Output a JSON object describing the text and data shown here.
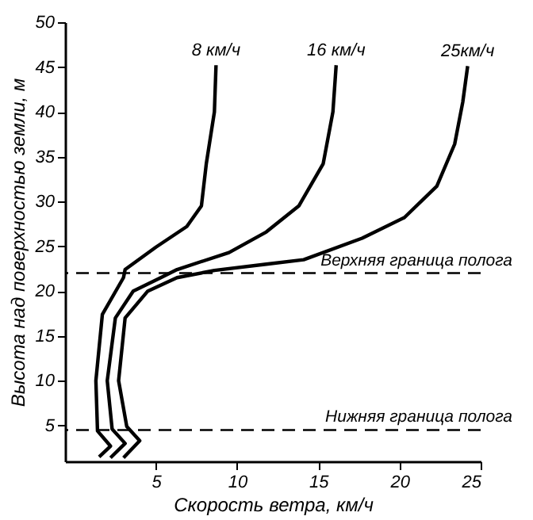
{
  "chart_data": {
    "type": "line",
    "xlabel": "Скорость ветра, км/ч",
    "ylabel": "Высота над поверхностью земли, м",
    "xlim": [
      -0.6,
      25
    ],
    "xticks": [
      5,
      10,
      15,
      20,
      25
    ],
    "ylim": [
      1,
      50
    ],
    "yticks": [
      5,
      10,
      15,
      20,
      25,
      30,
      35,
      40,
      45,
      50
    ],
    "grid": false,
    "marker": "none",
    "line_style": "solid",
    "series": [
      {
        "name": "8 км/ч",
        "color": "#000000",
        "x": [
          1.5,
          2.2,
          1.4,
          1.3,
          1.7,
          3.0,
          3.1,
          5.0,
          6.9,
          7.8,
          8.1,
          8.6,
          8.7
        ],
        "values": [
          1.5,
          2.7,
          4.4,
          10,
          17.4,
          21.5,
          22.4,
          24.9,
          27.2,
          29.5,
          34.2,
          40,
          45.2
        ]
      },
      {
        "name": "16 км/ч",
        "color": "#000000",
        "x": [
          2.2,
          3.1,
          2.3,
          2.0,
          2.5,
          3.6,
          5.3,
          6.3,
          9.5,
          11.8,
          13.8,
          15.3,
          15.9,
          16.1
        ],
        "values": [
          1.4,
          3.0,
          4.6,
          10,
          17,
          20,
          21.5,
          22.4,
          24.3,
          26.6,
          29.5,
          34.2,
          40,
          45.2
        ]
      },
      {
        "name": "25км/ч",
        "color": "#000000",
        "x": [
          3.0,
          4.0,
          3.2,
          2.7,
          3.1,
          4.5,
          6.3,
          8.6,
          11.8,
          14.1,
          17.7,
          20.3,
          22.3,
          23.4,
          23.9,
          24.2
        ],
        "values": [
          1.4,
          3.3,
          4.9,
          10,
          17,
          20,
          21.5,
          22.3,
          23.0,
          23.5,
          25.9,
          28.2,
          31.7,
          36.4,
          41.1,
          45.1
        ]
      }
    ],
    "ref_lines": [
      {
        "axis": "y",
        "value": 22,
        "label": "Верхняя граница полога",
        "color": "#000000",
        "line_style": "dashed"
      },
      {
        "axis": "y",
        "value": 4.5,
        "label": "Нижняя граница полога",
        "color": "#000000",
        "line_style": "dashed"
      }
    ]
  }
}
